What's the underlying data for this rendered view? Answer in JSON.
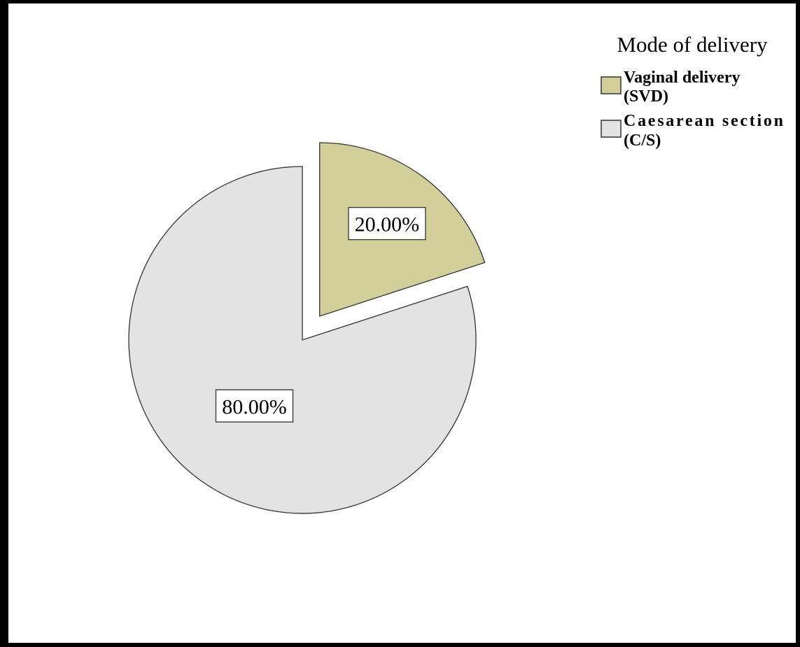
{
  "chart_data": {
    "type": "pie",
    "title": "",
    "legend_title": "Mode of delivery",
    "legend_position": "top-right",
    "slices": [
      {
        "label_lines": [
          "Vaginal delivery",
          "(SVD)"
        ],
        "value": 20.0,
        "display": "20.00%",
        "color": "#d3cf9a",
        "exploded": true
      },
      {
        "label_lines": [
          "Caesarean section",
          "(C/S)"
        ],
        "value": 80.0,
        "display": "80.00%",
        "color": "#e3e3e3",
        "exploded": false
      }
    ]
  }
}
